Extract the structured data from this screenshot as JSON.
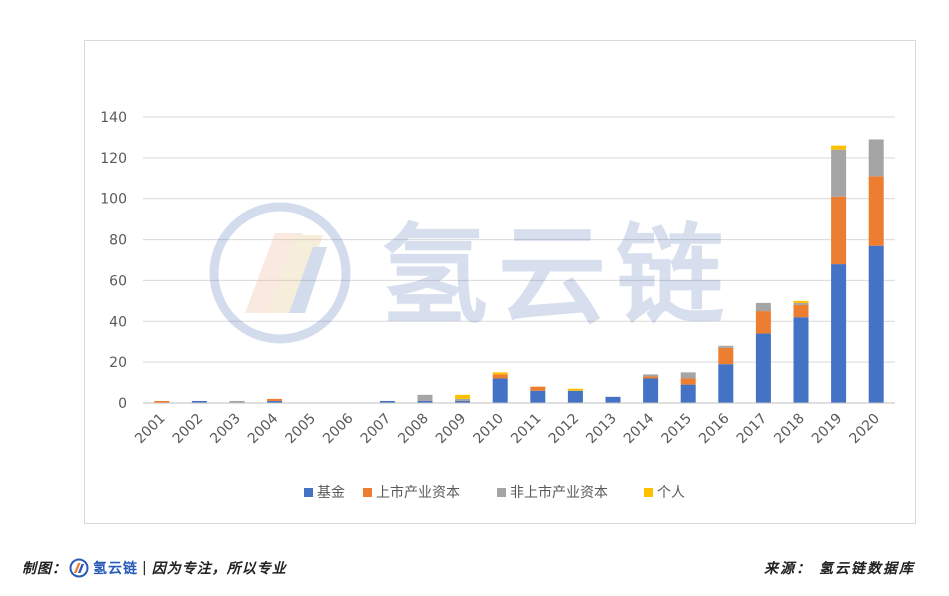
{
  "colors": {
    "fund": "#4472c4",
    "listed": "#ed7d31",
    "unlisted": "#a5a5a5",
    "individual": "#ffc000",
    "grid": "#d9d9d9",
    "watermark": "#3b63b0",
    "brand": "#2a5bb8"
  },
  "watermark": {
    "text": "氢云链",
    "icon": "hydrogen-cloud-chain-logo-icon"
  },
  "footer": {
    "left_label": "制图：",
    "brand": "氢云链",
    "separator": "|",
    "slogan": "因为专注，所以专业",
    "source": "来源：  氢云链数据库"
  },
  "chart_data": {
    "type": "bar",
    "stacked": true,
    "title": "",
    "xlabel": "",
    "ylabel": "",
    "ylim": [
      0,
      140
    ],
    "yticks": [
      0,
      20,
      40,
      60,
      80,
      100,
      120,
      140
    ],
    "grid": true,
    "legend_position": "bottom",
    "categories": [
      "2001",
      "2002",
      "2003",
      "2004",
      "2005",
      "2006",
      "2007",
      "2008",
      "2009",
      "2010",
      "2011",
      "2012",
      "2013",
      "2014",
      "2015",
      "2016",
      "2017",
      "2018",
      "2019",
      "2020"
    ],
    "series": [
      {
        "name": "基金",
        "color": "#4472c4",
        "values": [
          0,
          1,
          0,
          1,
          0,
          0,
          1,
          1,
          1,
          12,
          6,
          6,
          3,
          12,
          9,
          19,
          34,
          42,
          68,
          77
        ]
      },
      {
        "name": "上市产业资本",
        "color": "#ed7d31",
        "values": [
          1,
          0,
          0,
          1,
          0,
          0,
          0,
          0,
          0,
          2,
          2,
          0,
          0,
          1,
          3,
          8,
          11,
          6,
          33,
          34
        ]
      },
      {
        "name": "非上市产业资本",
        "color": "#a5a5a5",
        "values": [
          0,
          0,
          1,
          0,
          0,
          0,
          0,
          3,
          1,
          0,
          0,
          0,
          0,
          1,
          3,
          1,
          4,
          1,
          23,
          18
        ]
      },
      {
        "name": "个人",
        "color": "#ffc000",
        "values": [
          0,
          0,
          0,
          0,
          0,
          0,
          0,
          0,
          2,
          1,
          0,
          1,
          0,
          0,
          0,
          0,
          0,
          1,
          2,
          0
        ]
      }
    ]
  }
}
